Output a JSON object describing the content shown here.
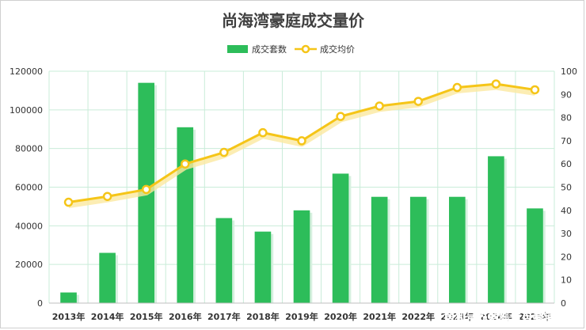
{
  "chart_data": {
    "type": "bar+line",
    "title": "尚海湾豪庭成交量价",
    "categories": [
      "2013年",
      "2014年",
      "2015年",
      "2016年",
      "2017年",
      "2018年",
      "2019年",
      "2020年",
      "2021年",
      "2022年",
      "2023年",
      "2024年",
      "2025年"
    ],
    "series": [
      {
        "name": "成交套数",
        "type": "bar",
        "axis": "left",
        "values": [
          5500,
          26000,
          114000,
          91000,
          44000,
          37000,
          48000,
          67000,
          55000,
          55000,
          55000,
          76000,
          49000
        ]
      },
      {
        "name": "成交均价",
        "type": "line",
        "axis": "right",
        "values": [
          43.5,
          46,
          49,
          60,
          65,
          73.5,
          70,
          80.5,
          85,
          87,
          93,
          94.5,
          92
        ]
      }
    ],
    "y_left": {
      "min": 0,
      "max": 120000,
      "step": 20000
    },
    "y_right": {
      "min": 0,
      "max": 100,
      "step": 10
    },
    "grid": true,
    "legend": "top-center",
    "colors": {
      "bar": "#2dbd5a",
      "line": "#f5c518",
      "line_glow": "#fbe9a0",
      "grid": "#c9ecd9"
    }
  },
  "watermark": "搜狐号@搜狐焦点豪宅大佬"
}
